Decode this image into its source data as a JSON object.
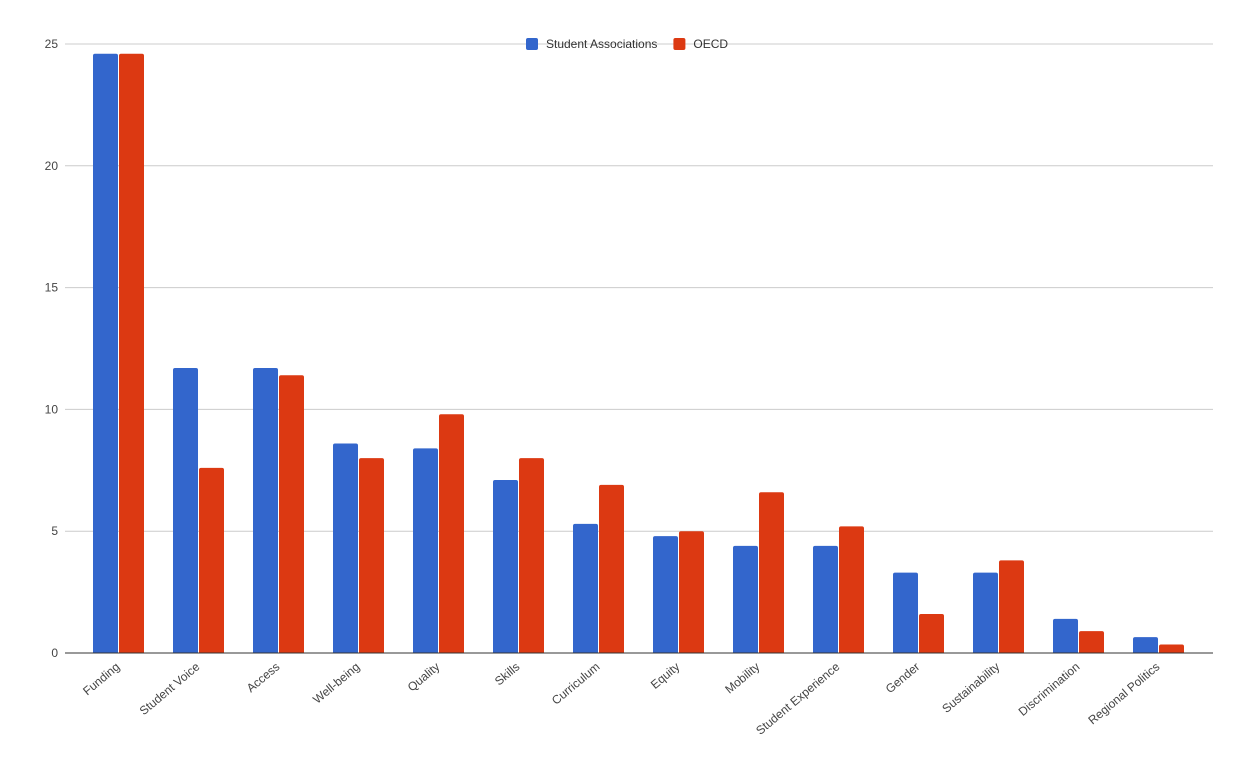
{
  "chart_data": {
    "type": "bar",
    "title": "",
    "xlabel": "",
    "ylabel": "",
    "ylim": [
      0,
      25
    ],
    "yticks": [
      0,
      5,
      10,
      15,
      20,
      25
    ],
    "grid": true,
    "legend_position": "top-center",
    "categories": [
      "Funding",
      "Student Voice",
      "Access",
      "Well-being",
      "Quality",
      "Skills",
      "Curriculum",
      "Equity",
      "Mobility",
      "Student Experience",
      "Gender",
      "Sustainability",
      "Discrimination",
      "Regional Politics"
    ],
    "series": [
      {
        "name": "Student Associations",
        "color": "#3366cc",
        "values": [
          24.6,
          11.7,
          11.7,
          8.6,
          8.4,
          7.1,
          5.3,
          4.8,
          4.4,
          4.4,
          3.3,
          3.3,
          1.4,
          0.65
        ]
      },
      {
        "name": "OECD",
        "color": "#dc3912",
        "values": [
          24.6,
          7.6,
          11.4,
          8.0,
          9.8,
          8.0,
          6.9,
          5.0,
          6.6,
          5.2,
          1.6,
          3.8,
          0.9,
          0.35
        ]
      }
    ]
  }
}
